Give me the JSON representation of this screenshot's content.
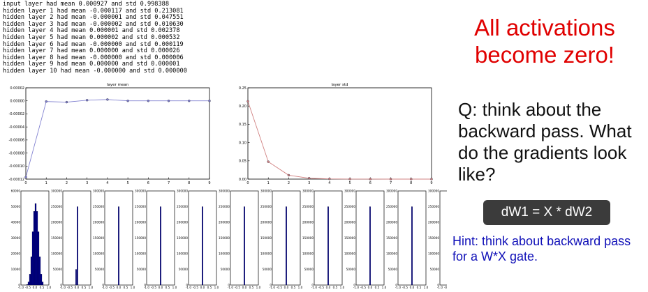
{
  "log_lines": [
    "input layer had mean 0.000927 and std 0.998388",
    "hidden layer 1 had mean -0.000117 and std 0.213081",
    "hidden layer 2 had mean -0.000001 and std 0.047551",
    "hidden layer 3 had mean -0.000002 and std 0.010630",
    "hidden layer 4 had mean 0.000001 and std 0.002378",
    "hidden layer 5 had mean 0.000002 and std 0.000532",
    "hidden layer 6 had mean -0.000000 and std 0.000119",
    "hidden layer 7 had mean 0.000000 and std 0.000026",
    "hidden layer 8 had mean -0.000000 and std 0.000006",
    "hidden layer 9 had mean 0.000000 and std 0.000001",
    "hidden layer 10 had mean -0.000000 and std 0.000000"
  ],
  "slide": {
    "headline": "All activations become zero!",
    "question": "Q: think about the backward pass. What do the gradients look like?",
    "formula": "dW1 = X * dW2",
    "hint": "Hint: think about backward pass for a W*X gate."
  },
  "colors": {
    "mean_line": "#8080d0",
    "std_line": "#d08080",
    "hist_bar": "#00008b",
    "headline": "#e00000",
    "hint": "#1010b8"
  },
  "chart_data": [
    {
      "type": "line",
      "title": "layer mean",
      "x": [
        0,
        1,
        2,
        3,
        4,
        5,
        6,
        7,
        8,
        9
      ],
      "series": [
        {
          "values": [
            -0.000117,
            -1e-06,
            -2e-06,
            1e-06,
            2e-06,
            -0.0,
            0.0,
            -0.0,
            0.0,
            -0.0
          ]
        }
      ],
      "xlim": [
        0,
        9
      ],
      "ylim": [
        -0.00012,
        2e-05
      ],
      "xticks": [
        "0",
        "1",
        "2",
        "3",
        "4",
        "5",
        "6",
        "7",
        "8",
        "9"
      ],
      "yticks": [
        "0.00002",
        "0.00000",
        "-0.00002",
        "-0.00004",
        "-0.00006",
        "-0.00008",
        "-0.00010",
        "-0.00012"
      ],
      "grid": false
    },
    {
      "type": "line",
      "title": "layer std",
      "x": [
        0,
        1,
        2,
        3,
        4,
        5,
        6,
        7,
        8,
        9
      ],
      "series": [
        {
          "values": [
            0.213081,
            0.047551,
            0.01063,
            0.002378,
            0.000532,
            0.000119,
            2.6e-05,
            6e-06,
            1e-06,
            0.0
          ]
        }
      ],
      "xlim": [
        0,
        9
      ],
      "ylim": [
        0,
        0.25
      ],
      "xticks": [
        "0",
        "1",
        "2",
        "3",
        "4",
        "5",
        "6",
        "7",
        "8",
        "9"
      ],
      "yticks": [
        "0.25",
        "0.20",
        "0.15",
        "0.10",
        "0.05",
        "0.00"
      ],
      "grid": false
    },
    {
      "type": "bar",
      "title": "",
      "panels": [
        {
          "xticks": [
            "-1.0",
            "-0.5",
            "0.0",
            "0.5",
            "1.0"
          ],
          "yticks": [
            "60000",
            "50000",
            "40000",
            "30000",
            "20000",
            "10000",
            "0"
          ],
          "ylim": [
            0,
            60000
          ],
          "bins": [
            -0.55,
            -0.45,
            -0.35,
            -0.25,
            -0.15,
            -0.05,
            0.05,
            0.15,
            0.25,
            0.35,
            0.45,
            0.55
          ],
          "values": [
            400,
            2000,
            7000,
            18000,
            34000,
            47000,
            52000,
            47000,
            34000,
            18000,
            7000,
            2000
          ]
        },
        {
          "xticks": [
            "-1.0",
            "-0.5",
            "0.0",
            "0.5",
            "1.0"
          ],
          "yticks": [
            "300000",
            "250000",
            "200000",
            "150000",
            "100000",
            "50000",
            "0"
          ],
          "ylim": [
            0,
            300000
          ],
          "bins": [
            -0.05,
            0.05
          ],
          "values": [
            50000,
            250000
          ]
        },
        {
          "xticks": [
            "-1.0",
            "-0.5",
            "0.0",
            "0.5",
            "1.0"
          ],
          "yticks": [
            "300000",
            "250000",
            "200000",
            "150000",
            "100000",
            "50000",
            "0"
          ],
          "ylim": [
            0,
            300000
          ],
          "bins": [
            0.0
          ],
          "values": [
            250000
          ]
        },
        {
          "xticks": [
            "-1.0",
            "-0.5",
            "0.0",
            "0.5",
            "1.0"
          ],
          "yticks": [
            "300000",
            "250000",
            "200000",
            "150000",
            "100000",
            "50000",
            "0"
          ],
          "ylim": [
            0,
            300000
          ],
          "bins": [
            0.0
          ],
          "values": [
            250000
          ]
        },
        {
          "xticks": [
            "-1.0",
            "-0.5",
            "0.0",
            "0.5",
            "1.0"
          ],
          "yticks": [
            "300000",
            "250000",
            "200000",
            "150000",
            "100000",
            "50000",
            "0"
          ],
          "ylim": [
            0,
            300000
          ],
          "bins": [
            0.0
          ],
          "values": [
            250000
          ]
        },
        {
          "xticks": [
            "-1.0",
            "-0.5",
            "0.0",
            "0.5",
            "1.0"
          ],
          "yticks": [
            "300000",
            "250000",
            "200000",
            "150000",
            "100000",
            "50000",
            "0"
          ],
          "ylim": [
            0,
            300000
          ],
          "bins": [
            0.0
          ],
          "values": [
            250000
          ]
        },
        {
          "xticks": [
            "-1.0",
            "-0.5",
            "0.0",
            "0.5",
            "1.0"
          ],
          "yticks": [
            "300000",
            "250000",
            "200000",
            "150000",
            "100000",
            "50000",
            "0"
          ],
          "ylim": [
            0,
            300000
          ],
          "bins": [
            0.0
          ],
          "values": [
            250000
          ]
        },
        {
          "xticks": [
            "-1.0",
            "-0.5",
            "0.0",
            "0.5",
            "1.0"
          ],
          "yticks": [
            "300000",
            "250000",
            "200000",
            "150000",
            "100000",
            "50000",
            "0"
          ],
          "ylim": [
            0,
            300000
          ],
          "bins": [
            0.0
          ],
          "values": [
            250000
          ]
        },
        {
          "xticks": [
            "-1.0",
            "-0.5",
            "0.0",
            "0.5",
            "1.0"
          ],
          "yticks": [
            "300000",
            "250000",
            "200000",
            "150000",
            "100000",
            "50000",
            "0"
          ],
          "ylim": [
            0,
            300000
          ],
          "bins": [
            0.0
          ],
          "values": [
            250000
          ]
        },
        {
          "xticks": [
            "-1.0",
            "-0.5",
            "0.0",
            "0.5",
            "1.0"
          ],
          "yticks": [
            "300000",
            "250000",
            "200000",
            "150000",
            "100000",
            "50000",
            "0"
          ],
          "ylim": [
            0,
            300000
          ],
          "bins": [
            0.0
          ],
          "values": [
            250000
          ]
        },
        {
          "xticks": [
            "-1.0",
            "-0.5",
            "0.0",
            "0.5",
            "1.0"
          ],
          "yticks": [
            "300000",
            "250000",
            "200000",
            "150000",
            "100000",
            "50000",
            "0"
          ],
          "ylim": [
            0,
            300000
          ],
          "bins": [
            0.0
          ],
          "values": [
            250000
          ]
        }
      ]
    }
  ]
}
